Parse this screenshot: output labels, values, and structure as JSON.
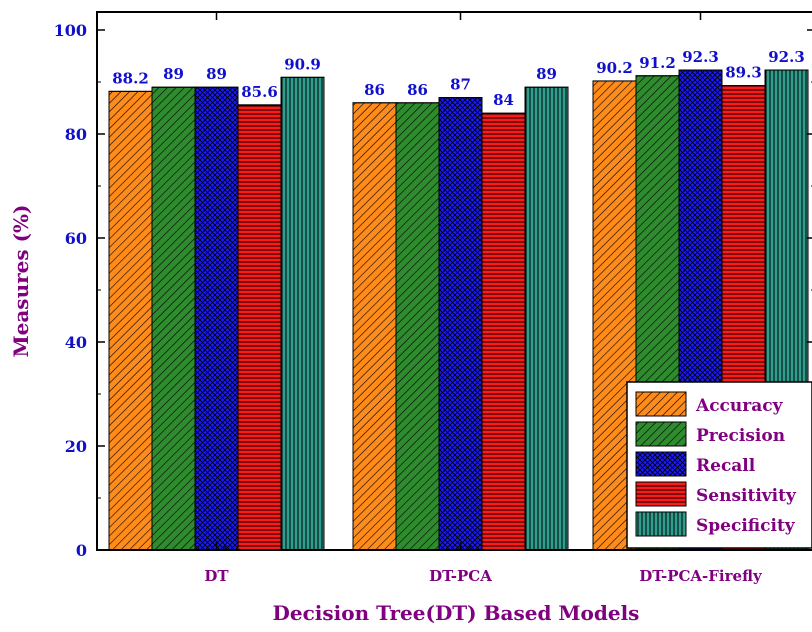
{
  "chart_data": {
    "type": "bar",
    "title": "",
    "xlabel": "Decision Tree(DT) Based Models",
    "ylabel": "Measures (%)",
    "ylim": [
      0,
      100
    ],
    "yticks": [
      0,
      20,
      40,
      60,
      80,
      100
    ],
    "categories": [
      "DT",
      "DT-PCA",
      "DT-PCA-Firefly"
    ],
    "legend_position": "bottom-right",
    "series": [
      {
        "name": "Accuracy",
        "values": [
          88.2,
          86,
          90.2
        ],
        "labels": [
          "88.2",
          "86",
          "90.2"
        ],
        "color": "#ff8c1a",
        "pattern": "diag"
      },
      {
        "name": "Precision",
        "values": [
          89,
          86,
          91.2
        ],
        "labels": [
          "89",
          "86",
          "91.2"
        ],
        "color": "#2e8b2e",
        "pattern": "diag"
      },
      {
        "name": "Recall",
        "values": [
          89,
          87,
          92.3
        ],
        "labels": [
          "89",
          "87",
          "92.3"
        ],
        "color": "#1a1aff",
        "pattern": "cross"
      },
      {
        "name": "Sensitivity",
        "values": [
          85.6,
          84,
          89.3
        ],
        "labels": [
          "85.6",
          "84",
          "89.3"
        ],
        "color": "#ff1a1a",
        "pattern": "horiz"
      },
      {
        "name": "Specificity",
        "values": [
          90.9,
          89,
          92.3
        ],
        "labels": [
          "90.9",
          "89",
          "92.3"
        ],
        "color": "#2e9e8e",
        "pattern": "vert"
      }
    ]
  }
}
